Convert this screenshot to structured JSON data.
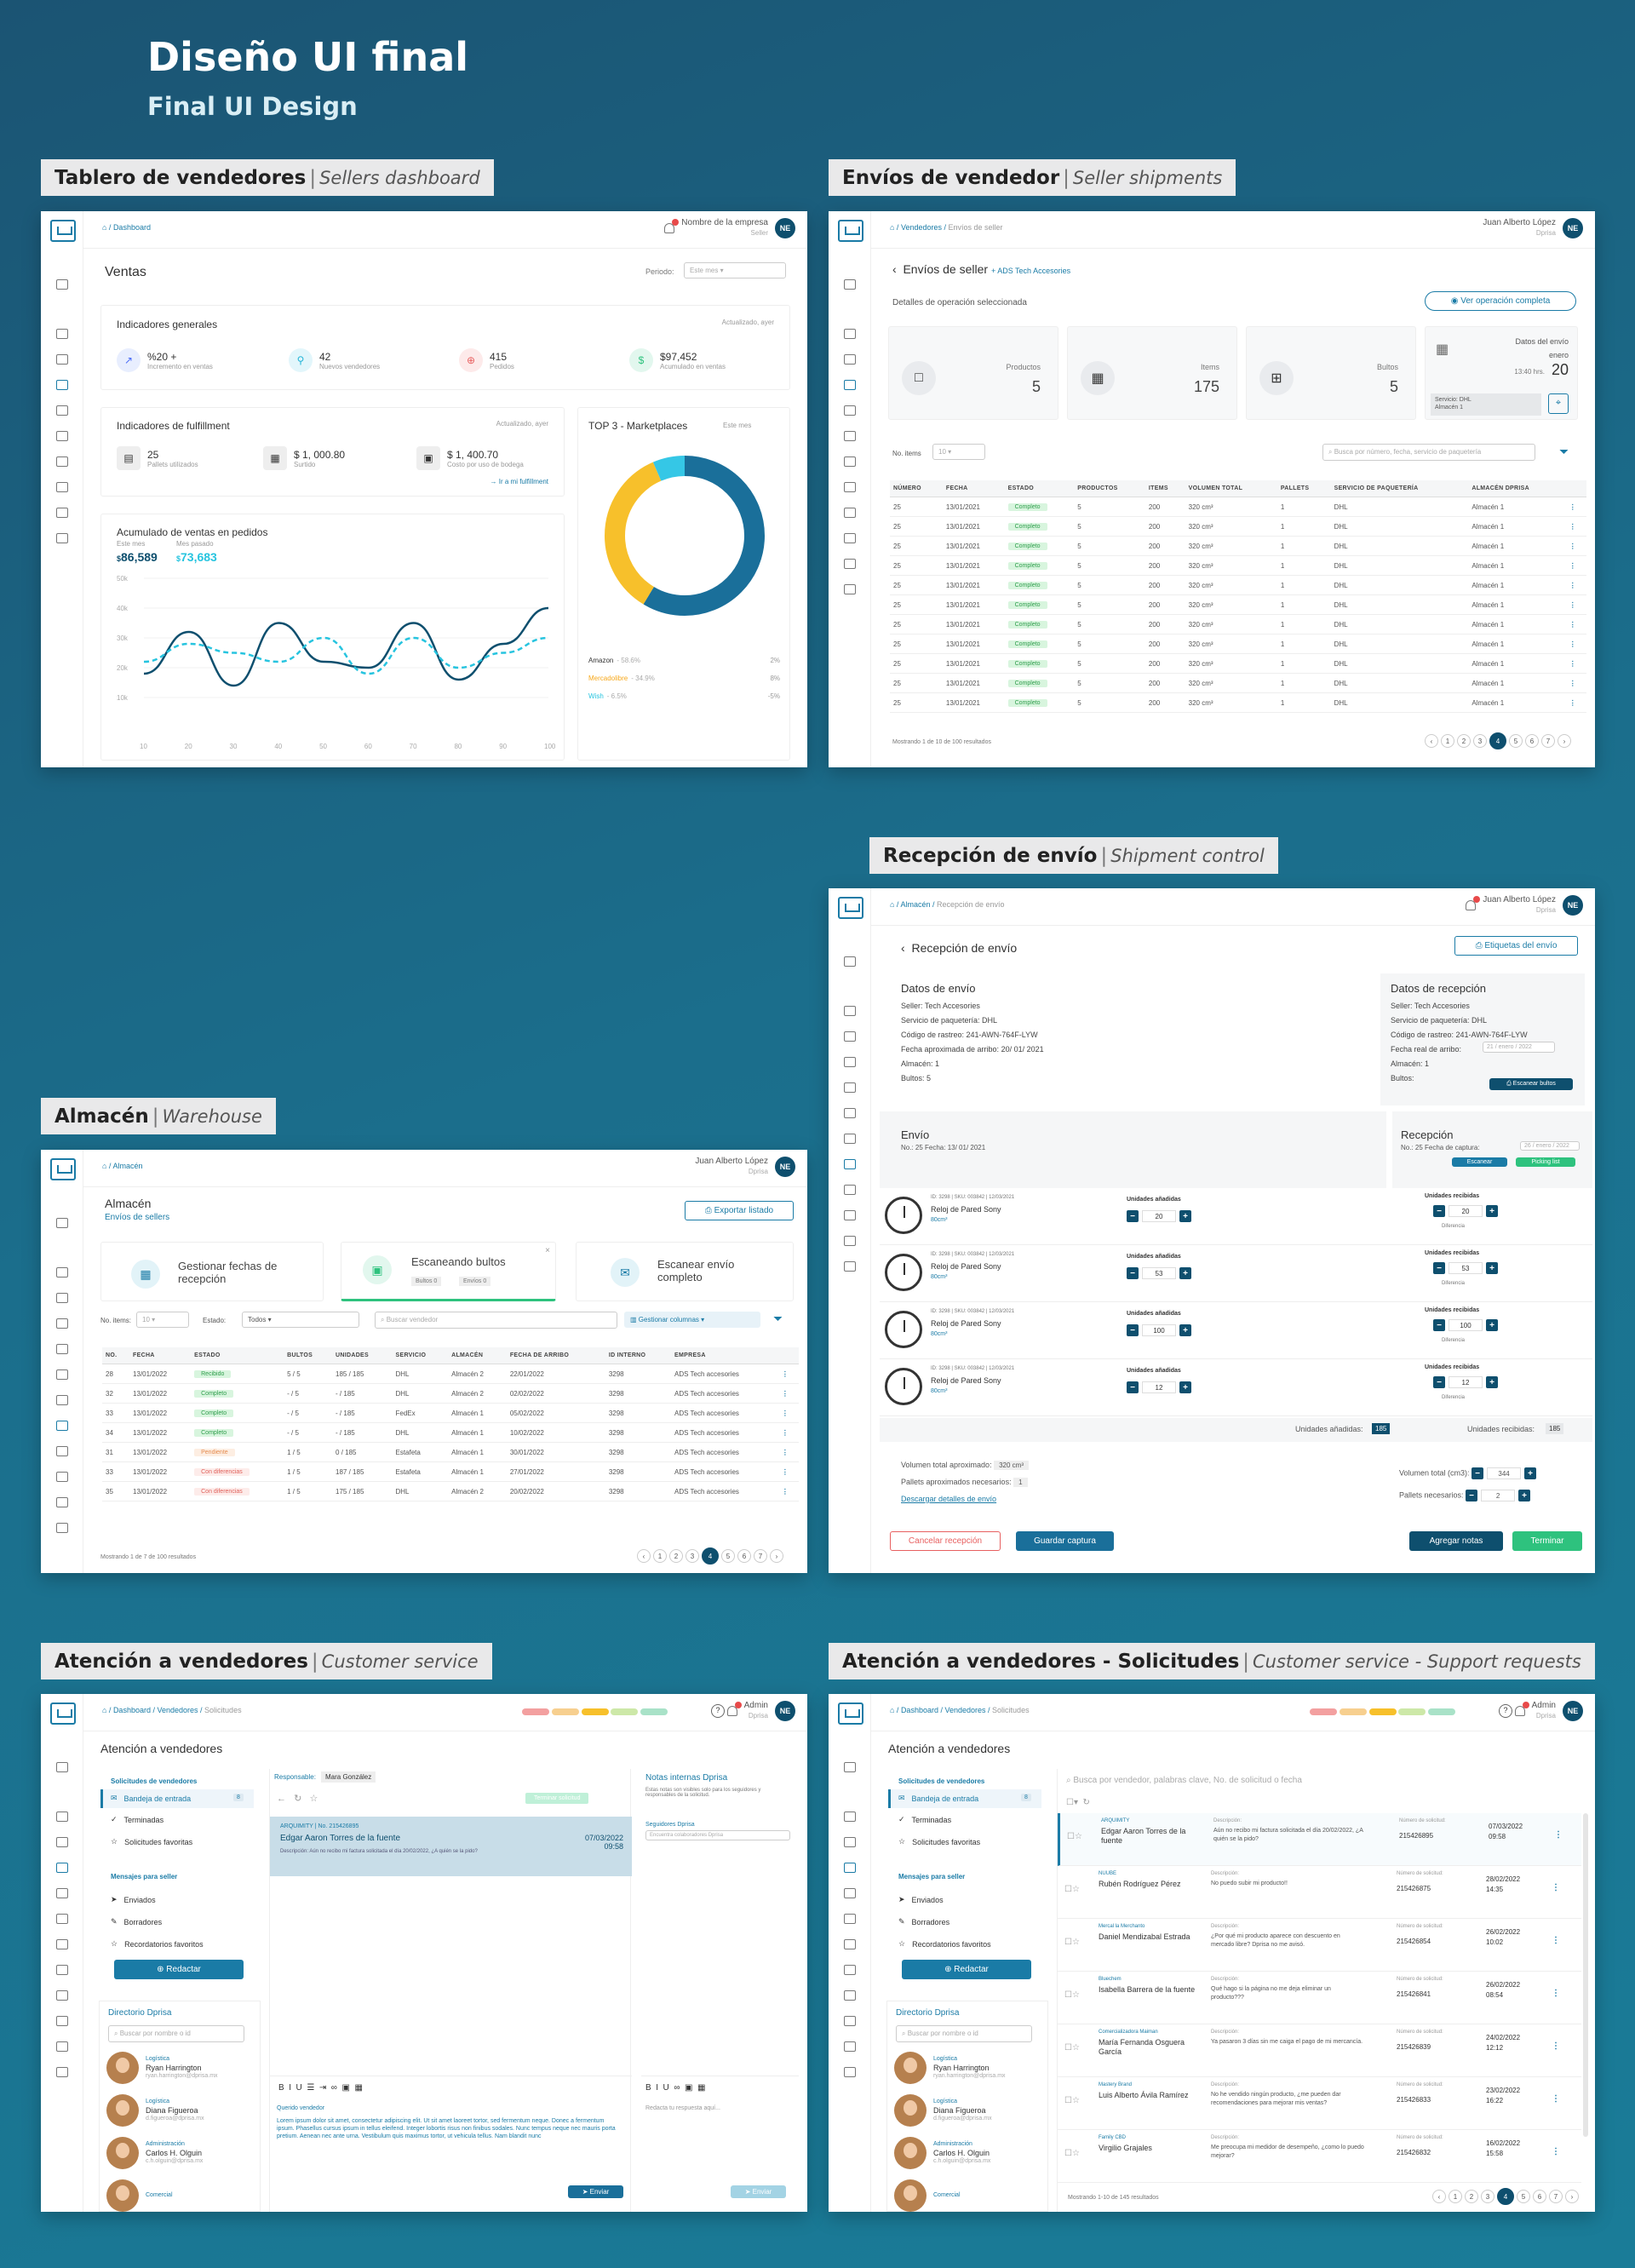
{
  "hero": {
    "title": "Diseño UI final",
    "subtitle": "Final UI Design"
  },
  "labels": {
    "dash": {
      "es": "Tablero de vendedores",
      "en": "Sellers dashboard"
    },
    "ship": {
      "es": "Envíos de vendedor",
      "en": "Seller shipments"
    },
    "recv": {
      "es": "Recepción de envío",
      "en": "Shipment control"
    },
    "ware": {
      "es": "Almacén",
      "en": "Warehouse"
    },
    "cs": {
      "es": "Atención a vendedores",
      "en": "Customer service"
    },
    "csr": {
      "es": "Atención a vendedores - Solicitudes",
      "en": "Customer service - Support requests"
    }
  },
  "dash": {
    "crumb": "Dashboard",
    "company": "Nombre de la empresa",
    "role": "Seller",
    "avatar": "NE",
    "title": "Ventas",
    "period_label": "Periodo:",
    "period": "Este mes",
    "gen_title": "Indicadores generales",
    "gen_updated": "Actualizado, ayer",
    "kpis": [
      {
        "v": "%20 +",
        "l": "Incremento en ventas"
      },
      {
        "v": "42",
        "l": "Nuevos vendedores"
      },
      {
        "v": "415",
        "l": "Pedidos"
      },
      {
        "v": "$97,452",
        "l": "Acumulado en ventas"
      }
    ],
    "ful_title": "Indicadores de fulfillment",
    "ful_updated": "Actualizado, ayer",
    "ful": [
      {
        "v": "25",
        "l": "Pallets utilizados"
      },
      {
        "v": "$ 1, 000.80",
        "l": "Surtido"
      },
      {
        "v": "$ 1, 400.70",
        "l": "Costo por uso de bodega"
      }
    ],
    "ful_link": "Ir a mi fulfillment",
    "acc_title": "Acumulado de ventas en pedidos",
    "acc_this": "Este mes",
    "acc_last": "Mes pasado",
    "acc_v1": "86,589",
    "acc_v2": "73,683",
    "cur": "$",
    "top_title": "TOP 3 - Marketplaces",
    "top_period": "Este mes",
    "markets": [
      {
        "name": "Amazon",
        "pct": "- 58.6%",
        "delta": "2%"
      },
      {
        "name": "Mercadolibre",
        "pct": "- 34.9%",
        "delta": "8%"
      },
      {
        "name": "Wish",
        "pct": "- 6.5%",
        "delta": "-5%"
      }
    ]
  },
  "chart_data": {
    "type": "line",
    "title": "Acumulado de ventas en pedidos",
    "x": [
      10,
      20,
      30,
      40,
      50,
      60,
      70,
      80,
      90,
      100
    ],
    "ylabels": [
      "50k",
      "40k",
      "30k",
      "20k",
      "10k"
    ],
    "series": [
      {
        "name": "Este mes",
        "values": [
          18,
          32,
          14,
          35,
          22,
          20,
          35,
          16,
          28,
          40
        ]
      },
      {
        "name": "Mes pasado",
        "values": [
          22,
          28,
          25,
          22,
          30,
          18,
          30,
          20,
          25,
          30
        ]
      }
    ],
    "donut": {
      "categories": [
        "Amazon",
        "Mercadolibre",
        "Wish"
      ],
      "values": [
        58.6,
        34.9,
        6.5
      ],
      "colors": [
        "#1a6f9a",
        "#f7c02b",
        "#35c7e6"
      ]
    }
  },
  "ship": {
    "crumb1": "Vendedores",
    "crumb2": "Envíos de seller",
    "user": "Juan Alberto López",
    "role": "Dprisa",
    "avatar": "NE",
    "title": "Envíos de seller",
    "seller": "+ ADS Tech Accesories",
    "sub": "Detalles de operación seleccionada",
    "btn": "Ver operación completa",
    "cards": [
      {
        "l": "Productos",
        "v": "5"
      },
      {
        "l": "Items",
        "v": "175"
      },
      {
        "l": "Bultos",
        "v": "5"
      }
    ],
    "date_title": "Datos del envío",
    "month": "enero",
    "time": "13:40 hrs.",
    "day": "20",
    "service": "Servicio: DHL",
    "almacen": "Almacén 1",
    "noitems": "No. items",
    "search": "Busca por número, fecha, servicio de paquetería",
    "cols": [
      "NÚMERO",
      "FECHA",
      "ESTADO",
      "PRODUCTOS",
      "ITEMS",
      "VOLUMEN TOTAL",
      "PALLETS",
      "SERVICIO DE PAQUETERÍA",
      "ALMACÉN DPRISA"
    ],
    "row": [
      "25",
      "13/01/2021",
      "Completo",
      "5",
      "200",
      "320 cm³",
      "1",
      "DHL",
      "Almacén 1"
    ],
    "footer": "Mostrando 1 de 10 de 100 resultados",
    "pages": [
      "1",
      "2",
      "3",
      "4",
      "5",
      "6",
      "7"
    ]
  },
  "recv": {
    "crumb1": "Almacén",
    "crumb2": "Recepción de envío",
    "user": "Juan Alberto López",
    "role": "Dprisa",
    "avatar": "NE",
    "title": "Recepción de envío",
    "btn": "Etiquetas del envío",
    "envio_title": "Datos de envío",
    "envio": [
      "Seller: Tech Accesories",
      "Servicio de paquetería: DHL",
      "Código de rastreo: 241-AWN-764F-LYW",
      "Fecha aproximada de arribo: 20/ 01/ 2021",
      "Almacén: 1",
      "Bultos: 5"
    ],
    "rec_title": "Datos de recepción",
    "rec": [
      "Seller: Tech Accesories",
      "Servicio de paquetería: DHL",
      "Código de rastreo: 241-AWN-764F-LYW",
      "Fecha real de arribo:",
      "Almacén: 1",
      "Bultos:"
    ],
    "rec_date": "21 / enero / 2022",
    "scan_bultos": "Escanear bultos",
    "envio2": "Envío",
    "envio2_sub": "No.: 25   Fecha: 13/ 01/ 2021",
    "recep": "Recepción",
    "recep_sub": "No.: 25   Fecha de captura:",
    "recep_date": "26 / enero / 2022",
    "escanear": "Escanear",
    "picking": "Picking list",
    "item_code": "ID: 3298 | SKU: 003842 | 12/03/2021",
    "item_name": "Reloj de Pared Sony",
    "item_vol": "80cm³",
    "added_label": "Unidades añadidas",
    "received_label": "Unidades recibidas",
    "diff": "Diferencia",
    "items": [
      {
        "a": "20",
        "r": "20"
      },
      {
        "a": "53",
        "r": "53"
      },
      {
        "a": "100",
        "r": "100"
      },
      {
        "a": "12",
        "r": "12"
      }
    ],
    "tot_added_l": "Unidades añadidas:",
    "tot_added": "185",
    "tot_rec_l": "Unidades recibidas:",
    "tot_rec": "185",
    "vol_l": "Volumen total aproximado:",
    "vol": "320 cm³",
    "pall_l": "Pallets aproximados necesarios:",
    "pall": "1",
    "download": "Descargar detalles de envío",
    "vol2_l": "Volumen total (cm3):",
    "vol2": "344",
    "pall2_l": "Pallets necesarios:",
    "pall2": "2",
    "cancel": "Cancelar recepción",
    "save": "Guardar captura",
    "notes": "Agregar notas",
    "finish": "Terminar"
  },
  "ware": {
    "crumb": "Almacén",
    "user": "Juan Alberto López",
    "role": "Dprisa",
    "avatar": "NE",
    "title": "Almacén",
    "sub": "Envíos de sellers",
    "export": "Exportar listado",
    "tiles": [
      "Gestionar fechas de recepción",
      "Escaneando bultos",
      "Escanear envío completo"
    ],
    "mini": [
      "Bultos",
      "0",
      "Envíos",
      "0"
    ],
    "noitems": "No. items:",
    "estado": "Estado:",
    "todos": "Todos",
    "search": "Buscar vendedor",
    "cols_btn": "Gestionar columnas",
    "cols": [
      "NO.",
      "FECHA",
      "ESTADO",
      "BULTOS",
      "UNIDADES",
      "SERVICIO",
      "ALMACÉN",
      "FECHA DE ARRIBO",
      "ID INTERNO",
      "EMPRESA"
    ],
    "rows": [
      [
        "28",
        "13/01/2022",
        "Recibido",
        "5 / 5",
        "185 / 185",
        "DHL",
        "Almacén 2",
        "22/01/2022",
        "3298",
        "ADS Tech accesories",
        "rec"
      ],
      [
        "32",
        "13/01/2022",
        "Completo",
        "- / 5",
        "- / 185",
        "DHL",
        "Almacén 2",
        "02/02/2022",
        "3298",
        "ADS Tech accesories",
        "ok"
      ],
      [
        "33",
        "13/01/2022",
        "Completo",
        "- / 5",
        "- / 185",
        "FedEx",
        "Almacén 1",
        "05/02/2022",
        "3298",
        "ADS Tech accesories",
        "ok"
      ],
      [
        "34",
        "13/01/2022",
        "Completo",
        "- / 5",
        "- / 185",
        "DHL",
        "Almacén 1",
        "10/02/2022",
        "3298",
        "ADS Tech accesories",
        "ok"
      ],
      [
        "31",
        "13/01/2022",
        "Pendiente",
        "1 / 5",
        "0 / 185",
        "Estafeta",
        "Almacén 1",
        "30/01/2022",
        "3298",
        "ADS Tech accesories",
        "pend"
      ],
      [
        "33",
        "13/01/2022",
        "Con diferencias",
        "1 / 5",
        "187 / 185",
        "Estafeta",
        "Almacén 1",
        "27/01/2022",
        "3298",
        "ADS Tech accesories",
        "warn"
      ],
      [
        "35",
        "13/01/2022",
        "Con diferencias",
        "1 / 5",
        "175 / 185",
        "DHL",
        "Almacén 2",
        "20/02/2022",
        "3298",
        "ADS Tech accesories",
        "warn"
      ]
    ],
    "footer": "Mostrando 1 de 7 de 100 resultados",
    "pages": [
      "1",
      "2",
      "3",
      "4",
      "5",
      "6",
      "7"
    ]
  },
  "cs": {
    "crumb": [
      "Dashboard",
      "Vendedores",
      "Solicitudes"
    ],
    "user": "Admin",
    "role": "Dprisa",
    "avatar": "NE",
    "title": "Atención a vendedores",
    "req_title": "Solicitudes de vendedores",
    "menu": [
      "Bandeja de entrada",
      "Terminadas",
      "Solicitudes favoritas"
    ],
    "badge": "8",
    "msg_title": "Mensajes para seller",
    "msg_menu": [
      "Enviados",
      "Borradores",
      "Recordatorios favoritos"
    ],
    "compose": "Redactar",
    "dir": "Directorio Dprisa",
    "dir_search": "Buscar por nombre o id",
    "people": [
      {
        "dept": "Logística",
        "name": "Ryan Harrington",
        "mail": "ryan.harrington@dprisa.mx"
      },
      {
        "dept": "Logística",
        "name": "Diana Figueroa",
        "mail": "d.figueroa@dprisa.mx"
      },
      {
        "dept": "Administración",
        "name": "Carlos H. Olguin",
        "mail": "c.h.olguin@dprisa.mx"
      },
      {
        "dept": "Comercial",
        "name": "",
        "mail": ""
      }
    ],
    "resp": "Responsable:",
    "resp_name": "Mara González",
    "mark_done": "Terminar solicitud",
    "sel_co": "ARQUIMITY",
    "sel_no": "No. 215426895",
    "sel_name": "Edgar Aaron Torres de la fuente",
    "sel_desc": "Descripción:  Aún no recibo mi factura solicitada el día 20/02/2022, ¿A quién se la pido?",
    "sel_date": "07/03/2022",
    "sel_time": "09:58",
    "notes_title": "Notas internas Dprisa",
    "notes_desc": "Estas notas son visibles solo para los seguidores y responsables de la solicitud.",
    "followers": "Seguidores Dprisa",
    "followers_ph": "Encuentra colaboradores Dprisa",
    "greet": "Querido vendedor",
    "lorem": "Lorem ipsum dolor sit amet, consectetur adipiscing elit. Ut sit amet laoreet tortor, sed fermentum neque. Donec a fermentum ipsum. Phasellus cursus ipsum in tellus eleifend. Integer lobortis risus non finibus sodales. Nunc tempus neque nec mauris porta pretium. Aenean nec ante urna. Vestibulum quis maximus tortor, ut vehicula tellus. Nam blandit nunc",
    "reply": "Redacta tu respuesta aquí...",
    "send": "Enviar"
  },
  "csr": {
    "search": "Busca por vendedor, palabras clave, No. de solicitud o fecha",
    "desc_l": "Descripción:",
    "num_l": "Número de solicitud:",
    "rows": [
      {
        "co": "ARQUIMITY",
        "name": "Edgar Aaron Torres de la fuente",
        "desc": "Aún no recibo mi factura solicitada el día 20/02/2022, ¿A quién se la pido?",
        "no": "215426895",
        "date": "07/03/2022",
        "time": "09:58"
      },
      {
        "co": "NUUBE",
        "name": "Rubén Rodríguez Pérez",
        "desc": "No puedo subir mi producto!!",
        "no": "215426875",
        "date": "28/02/2022",
        "time": "14:35"
      },
      {
        "co": "Mercal la Merchanto",
        "name": "Daniel Mendizabal Estrada",
        "desc": "¿Por qué mi producto aparece con descuento en mercado libre? Dprisa no me avisó.",
        "no": "215426854",
        "date": "26/02/2022",
        "time": "10:02"
      },
      {
        "co": "Bluechem",
        "name": "Isabella Barrera de la fuente",
        "desc": "Qué hago si la página no me deja eliminar un producto???",
        "no": "215426841",
        "date": "26/02/2022",
        "time": "08:54"
      },
      {
        "co": "Comercializadora Maiman",
        "name": "María Fernanda Osguera García",
        "desc": "Ya pasaron 3 días sin me caiga el pago de mi mercancía.",
        "no": "215426839",
        "date": "24/02/2022",
        "time": "12:12"
      },
      {
        "co": "Mastery Brand",
        "name": "Luis Alberto Ávila Ramírez",
        "desc": "No he vendido ningún producto, ¿me pueden dar recomendaciones para mejorar mis ventas?",
        "no": "215426833",
        "date": "23/02/2022",
        "time": "16:22"
      },
      {
        "co": "Family CBD",
        "name": "Virgilio Grajales",
        "desc": "Me preocupa mi medidor de desempeño, ¿como lo puedo mejorar?",
        "no": "215426832",
        "date": "16/02/2022",
        "time": "15:58"
      }
    ],
    "footer": "Mostrando 1-10 de 145 resultados",
    "pages": [
      "1",
      "2",
      "3",
      "4",
      "5",
      "6",
      "7"
    ]
  }
}
